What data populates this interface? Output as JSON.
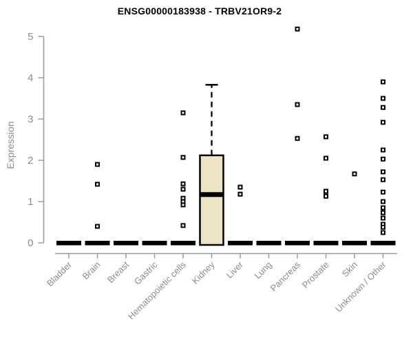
{
  "chart_data": {
    "type": "boxplot",
    "title": "ENSG00000183938 - TRBV21OR9-2",
    "ylabel": "Expression",
    "xlabel": "",
    "ylim": [
      0,
      5
    ],
    "yticks": [
      0,
      1,
      2,
      3,
      4,
      5
    ],
    "grid": false,
    "legend": false,
    "categories": [
      "Bladder",
      "Brain",
      "Breast",
      "Gastric",
      "Hematopoietic cells",
      "Kidney",
      "Liver",
      "Lung",
      "Pancreas",
      "Prostate",
      "Skin",
      "Unknown / Other"
    ],
    "boxes": [
      {
        "category": "Bladder",
        "median": 0,
        "q1": 0,
        "q3": 0,
        "whisker_low": 0,
        "whisker_high": 0,
        "outliers": []
      },
      {
        "category": "Brain",
        "median": 0,
        "q1": 0,
        "q3": 0,
        "whisker_low": 0,
        "whisker_high": 0,
        "outliers": [
          1.9,
          1.42,
          0.4
        ]
      },
      {
        "category": "Breast",
        "median": 0,
        "q1": 0,
        "q3": 0,
        "whisker_low": 0,
        "whisker_high": 0,
        "outliers": []
      },
      {
        "category": "Gastric",
        "median": 0,
        "q1": 0,
        "q3": 0,
        "whisker_low": 0,
        "whisker_high": 0,
        "outliers": []
      },
      {
        "category": "Hematopoietic cells",
        "median": 0,
        "q1": 0,
        "q3": 0,
        "whisker_low": 0,
        "whisker_high": 0,
        "outliers": [
          3.15,
          2.07,
          1.43,
          1.3,
          1.08,
          1.0,
          0.92,
          0.42
        ]
      },
      {
        "category": "Kidney",
        "median": 1.17,
        "q1": 0,
        "q3": 2.12,
        "whisker_low": 0,
        "whisker_high": 3.83,
        "outliers": []
      },
      {
        "category": "Liver",
        "median": 0,
        "q1": 0,
        "q3": 0,
        "whisker_low": 0,
        "whisker_high": 0,
        "outliers": [
          1.35,
          1.18
        ]
      },
      {
        "category": "Lung",
        "median": 0,
        "q1": 0,
        "q3": 0,
        "whisker_low": 0,
        "whisker_high": 0,
        "outliers": []
      },
      {
        "category": "Pancreas",
        "median": 0,
        "q1": 0,
        "q3": 0,
        "whisker_low": 0,
        "whisker_high": 0,
        "outliers": [
          5.18,
          3.35,
          2.53
        ]
      },
      {
        "category": "Prostate",
        "median": 0,
        "q1": 0,
        "q3": 0,
        "whisker_low": 0,
        "whisker_high": 0,
        "outliers": [
          2.57,
          2.05,
          1.25,
          1.13
        ]
      },
      {
        "category": "Skin",
        "median": 0,
        "q1": 0,
        "q3": 0,
        "whisker_low": 0,
        "whisker_high": 0,
        "outliers": [
          1.67
        ]
      },
      {
        "category": "Unknown / Other",
        "median": 0,
        "q1": 0,
        "q3": 0,
        "whisker_low": 0,
        "whisker_high": 0,
        "outliers": [
          3.9,
          3.5,
          3.28,
          2.92,
          2.25,
          2.03,
          1.72,
          1.53,
          1.23,
          1.0,
          0.85,
          0.73,
          0.6,
          0.45,
          0.38,
          0.25
        ]
      }
    ],
    "colors": {
      "box_fill": "#ece4c5",
      "box_stroke": "#000000",
      "median": "#000000",
      "outlier_stroke": "#000000",
      "outlier_fill": "#ffffff",
      "axis": "#9a9a9a",
      "tick_label": "#8c8c8c",
      "title": "#000000",
      "background": "#ffffff"
    }
  }
}
